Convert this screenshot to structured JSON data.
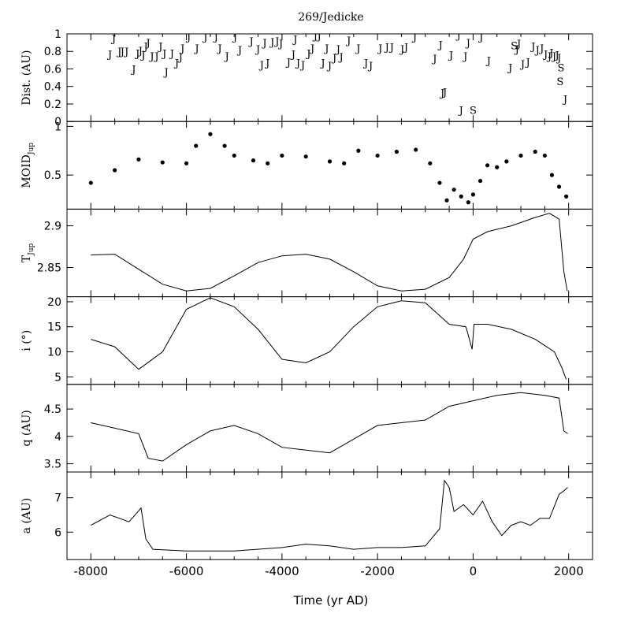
{
  "chart_data": {
    "type": "multi-panel line/scatter",
    "title": "269/Jedicke",
    "xlabel": "Time (yr AD)",
    "xlim": [
      -8500,
      2500
    ],
    "x_ticks": [
      -8000,
      -6000,
      -4000,
      -2000,
      0,
      2000
    ],
    "x_tick_labels": [
      "-8000",
      "-6000",
      "-4000",
      "-2000",
      "0",
      "2000"
    ],
    "panels": [
      {
        "id": "dist",
        "ylabel": "Dist. (AU)",
        "ylim": [
          0,
          1.0
        ],
        "y_ticks": [
          0,
          0.2,
          0.4,
          0.6,
          0.8,
          1
        ],
        "y_tick_labels": [
          "0",
          "0.2",
          "0.4",
          "0.6",
          "0.8",
          "1"
        ],
        "kind": "encounters",
        "marks": [
          {
            "t": "J",
            "x": -7600,
            "y": 0.77
          },
          {
            "t": "J",
            "x": -7520,
            "y": 0.95
          },
          {
            "t": "J",
            "x": -7400,
            "y": 0.8
          },
          {
            "t": "J",
            "x": -7340,
            "y": 0.8
          },
          {
            "t": "J",
            "x": -7250,
            "y": 0.8
          },
          {
            "t": "J",
            "x": -7100,
            "y": 0.6
          },
          {
            "t": "J",
            "x": -7020,
            "y": 0.78
          },
          {
            "t": "J",
            "x": -6960,
            "y": 0.81
          },
          {
            "t": "J",
            "x": -6900,
            "y": 0.76
          },
          {
            "t": "J",
            "x": -6850,
            "y": 0.86
          },
          {
            "t": "J",
            "x": -6800,
            "y": 0.9
          },
          {
            "t": "J",
            "x": -6720,
            "y": 0.75
          },
          {
            "t": "J",
            "x": -6620,
            "y": 0.75
          },
          {
            "t": "J",
            "x": -6540,
            "y": 0.86
          },
          {
            "t": "J",
            "x": -6460,
            "y": 0.78
          },
          {
            "t": "J",
            "x": -6420,
            "y": 0.57
          },
          {
            "t": "J",
            "x": -6300,
            "y": 0.78
          },
          {
            "t": "J",
            "x": -6200,
            "y": 0.67
          },
          {
            "t": "J",
            "x": -6120,
            "y": 0.74
          },
          {
            "t": "J",
            "x": -6080,
            "y": 0.84
          },
          {
            "t": "J",
            "x": -5950,
            "y": 0.97
          },
          {
            "t": "J",
            "x": -5780,
            "y": 0.84
          },
          {
            "t": "J",
            "x": -5600,
            "y": 0.97
          },
          {
            "t": "J",
            "x": -5380,
            "y": 0.97
          },
          {
            "t": "J",
            "x": -5300,
            "y": 0.84
          },
          {
            "t": "J",
            "x": -5150,
            "y": 0.75
          },
          {
            "t": "J",
            "x": -4980,
            "y": 0.97
          },
          {
            "t": "J",
            "x": -4880,
            "y": 0.82
          },
          {
            "t": "J",
            "x": -4640,
            "y": 0.92
          },
          {
            "t": "J",
            "x": -4500,
            "y": 0.83
          },
          {
            "t": "J",
            "x": -4420,
            "y": 0.65
          },
          {
            "t": "J",
            "x": -4360,
            "y": 0.9
          },
          {
            "t": "J",
            "x": -4300,
            "y": 0.67
          },
          {
            "t": "J",
            "x": -4200,
            "y": 0.91
          },
          {
            "t": "J",
            "x": -4100,
            "y": 0.92
          },
          {
            "t": "J",
            "x": -4020,
            "y": 0.89
          },
          {
            "t": "J",
            "x": -3860,
            "y": 0.68
          },
          {
            "t": "J",
            "x": -3760,
            "y": 0.77
          },
          {
            "t": "J",
            "x": -3720,
            "y": 0.94
          },
          {
            "t": "J",
            "x": -3660,
            "y": 0.67
          },
          {
            "t": "J",
            "x": -3560,
            "y": 0.65
          },
          {
            "t": "J",
            "x": -3440,
            "y": 0.78
          },
          {
            "t": "J",
            "x": -3360,
            "y": 0.84
          },
          {
            "t": "J",
            "x": -3300,
            "y": 0.98
          },
          {
            "t": "J",
            "x": -3220,
            "y": 0.98
          },
          {
            "t": "J",
            "x": -3140,
            "y": 0.67
          },
          {
            "t": "J",
            "x": -3060,
            "y": 0.84
          },
          {
            "t": "J",
            "x": -3000,
            "y": 0.64
          },
          {
            "t": "J",
            "x": -2900,
            "y": 0.73
          },
          {
            "t": "J",
            "x": -2820,
            "y": 0.83
          },
          {
            "t": "J",
            "x": -2760,
            "y": 0.74
          },
          {
            "t": "J",
            "x": -2600,
            "y": 0.93
          },
          {
            "t": "J",
            "x": -2400,
            "y": 0.84
          },
          {
            "t": "J",
            "x": -2240,
            "y": 0.67
          },
          {
            "t": "J",
            "x": -2140,
            "y": 0.64
          },
          {
            "t": "J",
            "x": -1940,
            "y": 0.84
          },
          {
            "t": "J",
            "x": -1800,
            "y": 0.85
          },
          {
            "t": "J",
            "x": -1700,
            "y": 0.85
          },
          {
            "t": "J",
            "x": -1480,
            "y": 0.83
          },
          {
            "t": "J",
            "x": -1400,
            "y": 0.85
          },
          {
            "t": "J",
            "x": -1220,
            "y": 0.97
          },
          {
            "t": "J",
            "x": -800,
            "y": 0.72
          },
          {
            "t": "J",
            "x": -680,
            "y": 0.88
          },
          {
            "t": "J",
            "x": -640,
            "y": 0.33
          },
          {
            "t": "J",
            "x": -590,
            "y": 0.34
          },
          {
            "t": "J",
            "x": -460,
            "y": 0.76
          },
          {
            "t": "J",
            "x": -300,
            "y": 0.99
          },
          {
            "t": "J",
            "x": -250,
            "y": 0.13
          },
          {
            "t": "J",
            "x": -160,
            "y": 0.75
          },
          {
            "t": "J",
            "x": -100,
            "y": 0.9
          },
          {
            "t": "S",
            "x": 0,
            "y": 0.13
          },
          {
            "t": "J",
            "x": 170,
            "y": 0.97
          },
          {
            "t": "J",
            "x": 330,
            "y": 0.7
          },
          {
            "t": "J",
            "x": 780,
            "y": 0.62
          },
          {
            "t": "S",
            "x": 860,
            "y": 0.87
          },
          {
            "t": "J",
            "x": 920,
            "y": 0.83
          },
          {
            "t": "J",
            "x": 960,
            "y": 0.89
          },
          {
            "t": "J",
            "x": 1040,
            "y": 0.66
          },
          {
            "t": "J",
            "x": 1150,
            "y": 0.68
          },
          {
            "t": "J",
            "x": 1260,
            "y": 0.86
          },
          {
            "t": "J",
            "x": 1350,
            "y": 0.82
          },
          {
            "t": "J",
            "x": 1440,
            "y": 0.84
          },
          {
            "t": "J",
            "x": 1520,
            "y": 0.77
          },
          {
            "t": "J",
            "x": 1600,
            "y": 0.75
          },
          {
            "t": "J",
            "x": 1640,
            "y": 0.79
          },
          {
            "t": "J",
            "x": 1700,
            "y": 0.75
          },
          {
            "t": "J",
            "x": 1760,
            "y": 0.76
          },
          {
            "t": "J",
            "x": 1800,
            "y": 0.73
          },
          {
            "t": "S",
            "x": 1840,
            "y": 0.62
          },
          {
            "t": "S",
            "x": 1820,
            "y": 0.46
          },
          {
            "t": "J",
            "x": 1930,
            "y": 0.26
          }
        ]
      },
      {
        "id": "moid",
        "ylabel": "MOID",
        "ylabel_sub": "Jup",
        "ylim": [
          0.15,
          1.05
        ],
        "y_ticks": [
          0.5,
          1
        ],
        "y_tick_labels": [
          "0.5",
          "1"
        ],
        "kind": "scatter",
        "x": [
          -8000,
          -7500,
          -7000,
          -6500,
          -6000,
          -5800,
          -5500,
          -5200,
          -5000,
          -4600,
          -4300,
          -4000,
          -3500,
          -3000,
          -2700,
          -2400,
          -2000,
          -1600,
          -1200,
          -900,
          -700,
          -550,
          -400,
          -250,
          -100,
          0,
          150,
          300,
          500,
          700,
          1000,
          1300,
          1500,
          1650,
          1800,
          1950
        ],
        "y": [
          0.42,
          0.55,
          0.66,
          0.63,
          0.62,
          0.8,
          0.92,
          0.8,
          0.7,
          0.65,
          0.62,
          0.7,
          0.69,
          0.64,
          0.62,
          0.75,
          0.7,
          0.74,
          0.76,
          0.62,
          0.42,
          0.24,
          0.35,
          0.28,
          0.22,
          0.3,
          0.44,
          0.6,
          0.58,
          0.64,
          0.7,
          0.74,
          0.7,
          0.5,
          0.38,
          0.28
        ]
      },
      {
        "id": "tjup",
        "ylabel": "T",
        "ylabel_sub": "Jup",
        "ylim": [
          2.815,
          2.92
        ],
        "y_ticks": [
          2.85,
          2.9
        ],
        "y_tick_labels": [
          "2.85",
          "2.9"
        ],
        "kind": "line",
        "x": [
          -8000,
          -7500,
          -7000,
          -6500,
          -6000,
          -5500,
          -5000,
          -4500,
          -4000,
          -3500,
          -3000,
          -2500,
          -2000,
          -1500,
          -1000,
          -500,
          -200,
          0,
          300,
          800,
          1300,
          1600,
          1800,
          1900,
          1970
        ],
        "y": [
          2.865,
          2.866,
          2.848,
          2.83,
          2.822,
          2.825,
          2.84,
          2.856,
          2.864,
          2.866,
          2.86,
          2.845,
          2.828,
          2.822,
          2.824,
          2.838,
          2.86,
          2.884,
          2.893,
          2.9,
          2.91,
          2.915,
          2.908,
          2.845,
          2.822
        ]
      },
      {
        "id": "incl",
        "ylabel": "i (°)",
        "ylim": [
          3.5,
          21
        ],
        "y_ticks": [
          5,
          10,
          15,
          20
        ],
        "y_tick_labels": [
          "5",
          "10",
          "15",
          "20"
        ],
        "kind": "line",
        "x": [
          -8000,
          -7500,
          -7000,
          -6500,
          -6000,
          -5500,
          -5000,
          -4500,
          -4000,
          -3500,
          -3000,
          -2500,
          -2000,
          -1500,
          -1000,
          -500,
          -150,
          -20,
          20,
          300,
          800,
          1300,
          1700,
          1850,
          1950
        ],
        "y": [
          12.5,
          11.0,
          6.5,
          10.0,
          18.5,
          20.8,
          19.0,
          14.5,
          8.5,
          7.8,
          10.0,
          15.0,
          19.0,
          20.2,
          19.8,
          15.5,
          15.0,
          10.5,
          15.5,
          15.5,
          14.5,
          12.5,
          10.0,
          7.0,
          4.5
        ]
      },
      {
        "id": "q",
        "ylabel": "q (AU)",
        "ylim": [
          3.35,
          4.95
        ],
        "y_ticks": [
          3.5,
          4,
          4.5
        ],
        "y_tick_labels": [
          "3.5",
          "4",
          "4.5"
        ],
        "kind": "line",
        "x": [
          -8000,
          -7500,
          -7000,
          -6800,
          -6500,
          -6000,
          -5500,
          -5000,
          -4500,
          -4000,
          -3500,
          -3000,
          -2500,
          -2000,
          -1500,
          -1000,
          -500,
          0,
          500,
          1000,
          1500,
          1800,
          1900,
          1980
        ],
        "y": [
          4.25,
          4.15,
          4.05,
          3.6,
          3.55,
          3.85,
          4.1,
          4.2,
          4.05,
          3.8,
          3.75,
          3.7,
          3.95,
          4.2,
          4.25,
          4.3,
          4.55,
          4.65,
          4.75,
          4.8,
          4.75,
          4.7,
          4.1,
          4.05
        ]
      },
      {
        "id": "a",
        "ylabel": "a (AU)",
        "ylim": [
          5.2,
          7.75
        ],
        "y_ticks": [
          6,
          7
        ],
        "y_tick_labels": [
          "6",
          "7"
        ],
        "kind": "line",
        "x": [
          -8000,
          -7600,
          -7200,
          -6950,
          -6850,
          -6700,
          -6000,
          -5000,
          -4000,
          -3500,
          -3000,
          -2500,
          -2000,
          -1500,
          -1000,
          -700,
          -600,
          -500,
          -400,
          -200,
          0,
          200,
          400,
          600,
          800,
          1000,
          1200,
          1400,
          1600,
          1800,
          1900,
          1980
        ],
        "y": [
          6.2,
          6.5,
          6.3,
          6.7,
          5.8,
          5.5,
          5.45,
          5.45,
          5.55,
          5.65,
          5.6,
          5.5,
          5.55,
          5.55,
          5.6,
          6.1,
          7.5,
          7.3,
          6.6,
          6.8,
          6.5,
          6.9,
          6.3,
          5.9,
          6.2,
          6.3,
          6.2,
          6.4,
          6.4,
          7.1,
          7.2,
          7.3
        ]
      }
    ]
  }
}
